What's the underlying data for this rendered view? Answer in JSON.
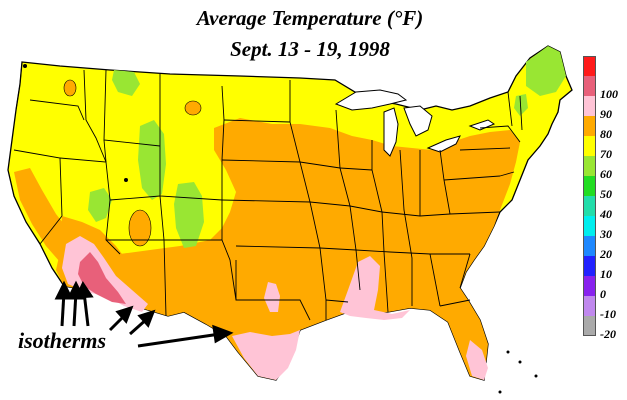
{
  "map": {
    "title": "Average Temperature (°F)",
    "subtitle": "Sept. 13 - 19, 1998",
    "annotation": "isotherms"
  },
  "legend": {
    "items": [
      {
        "label": "",
        "color": "#ff1a1a"
      },
      {
        "label": "100",
        "color": "#e8607a"
      },
      {
        "label": "90",
        "color": "#ffc4d6"
      },
      {
        "label": "80",
        "color": "#ffaa00"
      },
      {
        "label": "70",
        "color": "#ffff00"
      },
      {
        "label": "60",
        "color": "#99e633"
      },
      {
        "label": "50",
        "color": "#22dd22"
      },
      {
        "label": "40",
        "color": "#22ddaa"
      },
      {
        "label": "30",
        "color": "#00eeee"
      },
      {
        "label": "20",
        "color": "#1e88ff"
      },
      {
        "label": "10",
        "color": "#2222ff"
      },
      {
        "label": "0",
        "color": "#8822ee"
      },
      {
        "label": "-10",
        "color": "#c088ee"
      },
      {
        "label": "-20",
        "color": "#aaaaaa"
      }
    ]
  },
  "colors": {
    "band_70": "#ffff00",
    "band_80": "#ffaa00",
    "band_90": "#ffc4d6",
    "band_100": "#e8607a",
    "band_60": "#99e633",
    "water": "#ffffff",
    "borders": "#000000"
  }
}
